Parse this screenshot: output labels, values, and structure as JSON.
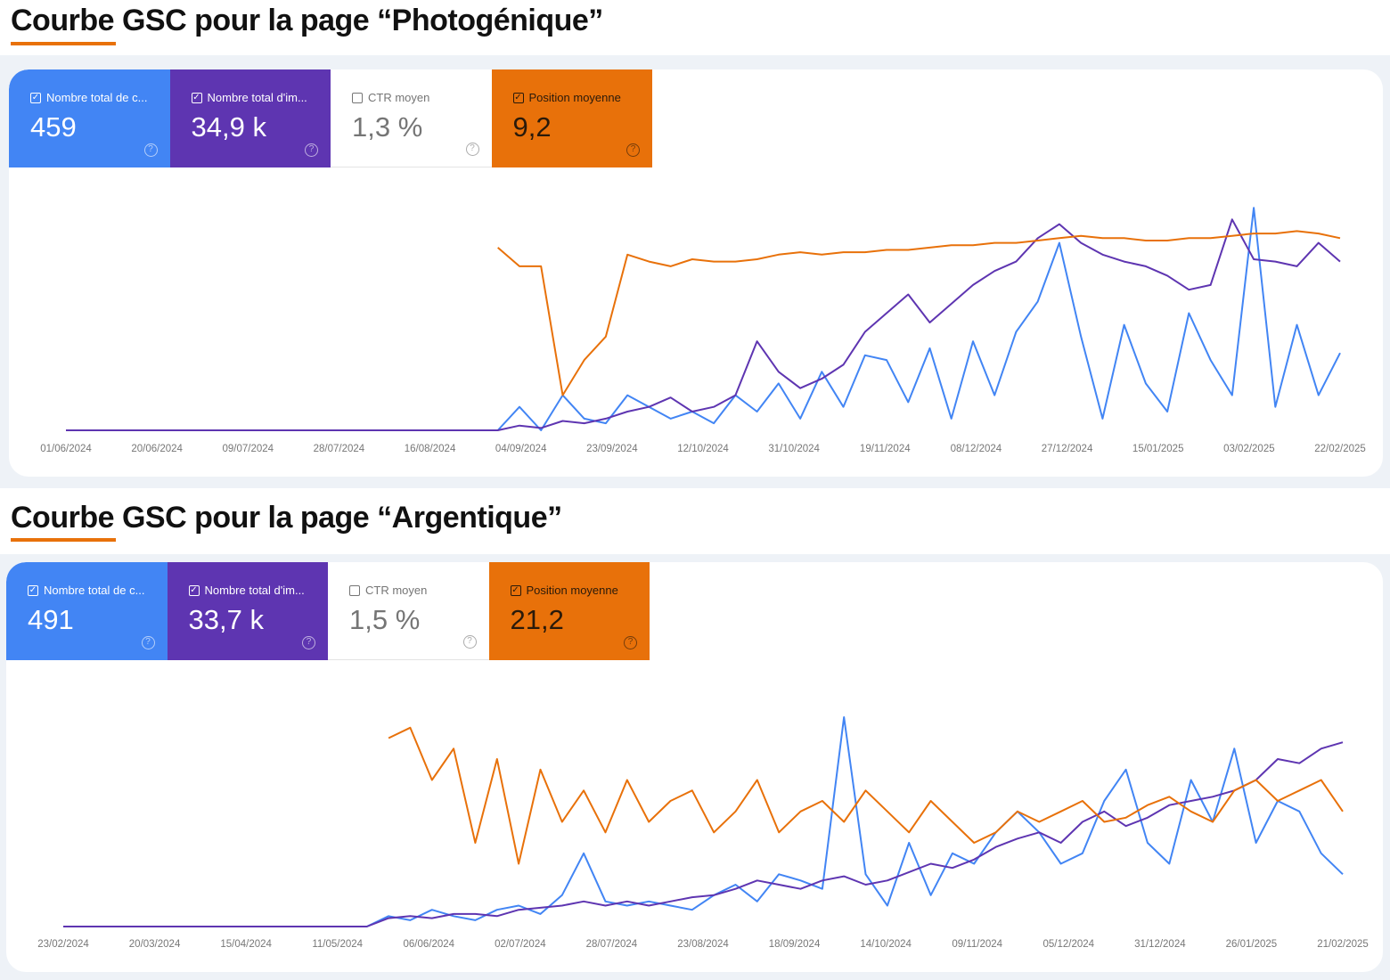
{
  "charts": [
    {
      "title": "Courbe GSC pour la page “Photogénique”",
      "metrics": [
        {
          "label": "Nombre total de c...",
          "value": "459",
          "checked": true,
          "color": "#4285f4"
        },
        {
          "label": "Nombre total d'im...",
          "value": "34,9 k",
          "checked": true,
          "color": "#5e35b1"
        },
        {
          "label": "CTR moyen",
          "value": "1,3 %",
          "checked": false,
          "color": "#ffffff"
        },
        {
          "label": "Position moyenne",
          "value": "9,2",
          "checked": true,
          "color": "#e8710a"
        }
      ]
    },
    {
      "title": "Courbe GSC pour la page “Argentique”",
      "metrics": [
        {
          "label": "Nombre total de c...",
          "value": "491",
          "checked": true,
          "color": "#4285f4"
        },
        {
          "label": "Nombre total d'im...",
          "value": "33,7 k",
          "checked": true,
          "color": "#5e35b1"
        },
        {
          "label": "CTR moyen",
          "value": "1,5 %",
          "checked": false,
          "color": "#ffffff"
        },
        {
          "label": "Position moyenne",
          "value": "21,2",
          "checked": true,
          "color": "#e8710a"
        }
      ]
    }
  ],
  "chart_data": [
    {
      "type": "line",
      "title": "Courbe GSC pour la page “Photogénique”",
      "grid": false,
      "x_ticks": [
        "01/06/2024",
        "20/06/2024",
        "09/07/2024",
        "28/07/2024",
        "16/08/2024",
        "04/09/2024",
        "23/09/2024",
        "12/10/2024",
        "31/10/2024",
        "19/11/2024",
        "08/12/2024",
        "27/12/2024",
        "15/01/2025",
        "03/02/2025",
        "22/02/2025"
      ],
      "x_range": [
        "01/06/2024",
        "22/02/2025"
      ],
      "series": [
        {
          "name": "Nombre total de c...",
          "color": "#4285f4",
          "values": [
            0,
            0,
            0,
            0,
            0,
            0,
            0,
            0,
            0,
            0,
            0,
            0,
            0,
            0,
            0,
            0,
            0,
            0,
            0,
            0,
            0,
            10,
            0,
            15,
            5,
            3,
            15,
            10,
            5,
            8,
            3,
            15,
            8,
            20,
            5,
            25,
            10,
            32,
            30,
            12,
            35,
            5,
            38,
            15,
            42,
            55,
            80,
            40,
            5,
            45,
            20,
            8,
            50,
            30,
            15,
            95,
            10,
            45,
            15,
            33
          ]
        },
        {
          "name": "Nombre total d'im...",
          "color": "#5e35b1",
          "values": [
            0,
            0,
            0,
            0,
            0,
            0,
            0,
            0,
            0,
            0,
            0,
            0,
            0,
            0,
            0,
            0,
            0,
            0,
            0,
            0,
            0,
            2,
            1,
            4,
            3,
            5,
            8,
            10,
            14,
            8,
            10,
            15,
            38,
            25,
            18,
            22,
            28,
            42,
            50,
            58,
            46,
            54,
            62,
            68,
            72,
            82,
            88,
            80,
            75,
            72,
            70,
            66,
            60,
            62,
            90,
            73,
            72,
            70,
            80,
            72
          ]
        },
        {
          "name": "Position moyenne",
          "color": "#e8710a",
          "values": [
            null,
            null,
            null,
            null,
            null,
            null,
            null,
            null,
            null,
            null,
            null,
            null,
            null,
            null,
            null,
            null,
            null,
            null,
            null,
            null,
            78,
            70,
            70,
            15,
            30,
            40,
            75,
            72,
            70,
            73,
            72,
            72,
            73,
            75,
            76,
            75,
            76,
            76,
            77,
            77,
            78,
            79,
            79,
            80,
            80,
            81,
            82,
            83,
            82,
            82,
            81,
            81,
            82,
            82,
            83,
            84,
            84,
            85,
            84,
            82
          ]
        }
      ]
    },
    {
      "type": "line",
      "title": "Courbe GSC pour la page “Argentique”",
      "grid": false,
      "x_ticks": [
        "23/02/2024",
        "20/03/2024",
        "15/04/2024",
        "11/05/2024",
        "06/06/2024",
        "02/07/2024",
        "28/07/2024",
        "23/08/2024",
        "18/09/2024",
        "14/10/2024",
        "09/11/2024",
        "05/12/2024",
        "31/12/2024",
        "26/01/2025",
        "21/02/2025"
      ],
      "x_range": [
        "23/02/2024",
        "21/02/2025"
      ],
      "series": [
        {
          "name": "Nombre total de c...",
          "color": "#4285f4",
          "values": [
            0,
            0,
            0,
            0,
            0,
            0,
            0,
            0,
            0,
            0,
            0,
            0,
            0,
            0,
            0,
            5,
            3,
            8,
            5,
            3,
            8,
            10,
            6,
            15,
            35,
            12,
            10,
            12,
            10,
            8,
            15,
            20,
            12,
            25,
            22,
            18,
            100,
            25,
            10,
            40,
            15,
            35,
            30,
            45,
            55,
            45,
            30,
            35,
            60,
            75,
            40,
            30,
            70,
            50,
            85,
            40,
            60,
            55,
            35,
            25
          ]
        },
        {
          "name": "Nombre total d'im...",
          "color": "#5e35b1",
          "values": [
            0,
            0,
            0,
            0,
            0,
            0,
            0,
            0,
            0,
            0,
            0,
            0,
            0,
            0,
            0,
            4,
            5,
            4,
            6,
            6,
            5,
            8,
            9,
            10,
            12,
            10,
            12,
            10,
            12,
            14,
            15,
            18,
            22,
            20,
            18,
            22,
            24,
            20,
            22,
            26,
            30,
            28,
            32,
            38,
            42,
            45,
            40,
            50,
            55,
            48,
            52,
            58,
            60,
            62,
            65,
            70,
            80,
            78,
            85,
            88
          ]
        },
        {
          "name": "Position moyenne",
          "color": "#e8710a",
          "values": [
            null,
            null,
            null,
            null,
            null,
            null,
            null,
            null,
            null,
            null,
            null,
            null,
            null,
            null,
            null,
            90,
            95,
            70,
            85,
            40,
            80,
            30,
            75,
            50,
            65,
            45,
            70,
            50,
            60,
            65,
            45,
            55,
            70,
            45,
            55,
            60,
            50,
            65,
            55,
            45,
            60,
            50,
            40,
            45,
            55,
            50,
            55,
            60,
            50,
            52,
            58,
            62,
            55,
            50,
            65,
            70,
            60,
            65,
            70,
            55
          ]
        }
      ]
    }
  ]
}
